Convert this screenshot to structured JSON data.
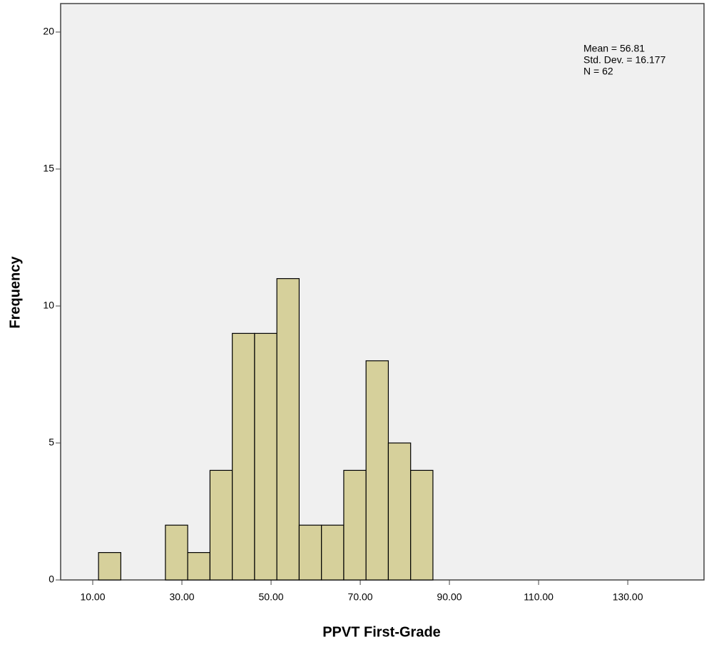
{
  "chart_data": {
    "type": "histogram",
    "xlabel": "PPVT First-Grade",
    "ylabel": "Frequency",
    "bins": [
      11.3,
      16.3,
      21.3,
      26.3,
      31.3,
      36.3,
      41.3,
      46.3,
      51.3,
      56.3,
      61.3,
      66.3,
      71.3,
      76.3,
      81.3,
      86.3
    ],
    "values": [
      1,
      0,
      0,
      2,
      1,
      4,
      9,
      9,
      11,
      2,
      2,
      4,
      8,
      5,
      4
    ],
    "color": "#d6d09b",
    "xlim": [
      2.8,
      147.1
    ],
    "xticks": [
      {
        "value": 10,
        "label": "10.00"
      },
      {
        "value": 30,
        "label": "30.00"
      },
      {
        "value": 50,
        "label": "50.00"
      },
      {
        "value": 70,
        "label": "70.00"
      },
      {
        "value": 90,
        "label": "90.00"
      },
      {
        "value": 110,
        "label": "110.00"
      },
      {
        "value": 130,
        "label": "130.00"
      }
    ],
    "ylim": [
      0,
      21.04
    ],
    "yticks": [
      0,
      5,
      10,
      15,
      20
    ],
    "annotations": [
      "Mean = 56.81",
      "Std. Dev. = 16.177",
      "N = 62"
    ]
  }
}
